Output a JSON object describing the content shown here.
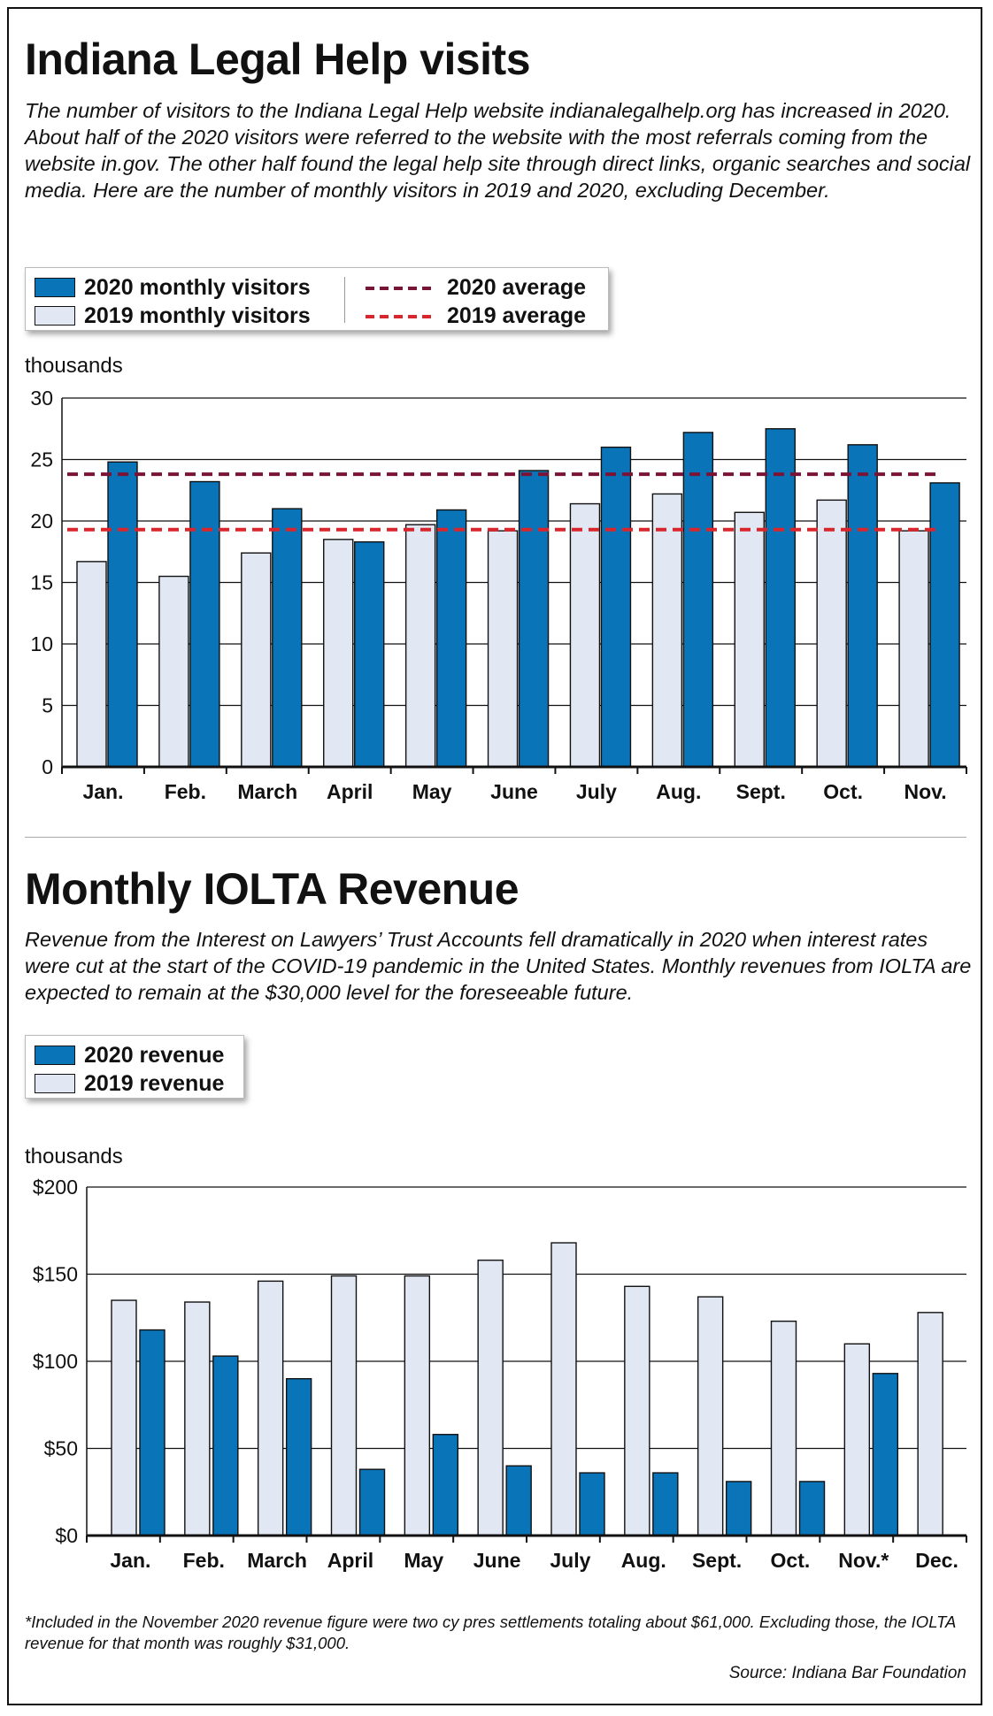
{
  "section1": {
    "title": "Indiana Legal Help visits",
    "description": "The number of visitors to the Indiana Legal Help website indianalegalhelp.org has increased in 2020. About half of the 2020 visitors were referred to the website with the most referrals coming from the website in.gov. The other half found the legal help site through direct links, organic searches and social media. Here are the number of monthly visitors in 2019 and 2020, excluding December.",
    "legend": {
      "series2020": "2020 monthly visitors",
      "series2019": "2019 monthly visitors",
      "avg2020": "2020 average",
      "avg2019": "2019 average"
    },
    "unit": "thousands"
  },
  "section2": {
    "title": "Monthly IOLTA Revenue",
    "description": "Revenue from the Interest on Lawyers’ Trust Accounts fell dramatically in 2020 when interest rates were cut at the start of the COVID-19 pandemic in the United States. Monthly revenues from IOLTA are expected to remain at the $30,000 level for the foreseeable future.",
    "legend": {
      "series2020": "2020 revenue",
      "series2019": "2019 revenue"
    },
    "unit": "thousands"
  },
  "footnote": "*Included in the November 2020 revenue figure were two cy pres settlements totaling about $61,000. Excluding those, the IOLTA revenue for that month was roughly $31,000.",
  "source": "Source: Indiana Bar Foundation",
  "colors": {
    "bar2020": "#0a74b8",
    "bar2019": "#e1e8f3",
    "avg2020": "#7a1436",
    "avg2019": "#d9262c"
  },
  "chart_data": [
    {
      "type": "bar",
      "title": "Indiana Legal Help visits",
      "ylabel": "thousands",
      "ylim": [
        0,
        30
      ],
      "yticks": [
        0,
        5,
        10,
        15,
        20,
        25,
        30
      ],
      "grid": true,
      "legend_position": "top-left",
      "categories": [
        "Jan.",
        "Feb.",
        "March",
        "April",
        "May",
        "June",
        "July",
        "Aug.",
        "Sept.",
        "Oct.",
        "Nov."
      ],
      "series": [
        {
          "name": "2019 monthly visitors",
          "values": [
            16.7,
            15.5,
            17.4,
            18.5,
            19.7,
            19.2,
            21.4,
            22.2,
            20.7,
            21.7,
            19.2
          ]
        },
        {
          "name": "2020 monthly visitors",
          "values": [
            24.8,
            23.2,
            21.0,
            18.3,
            20.9,
            24.1,
            26.0,
            27.2,
            27.5,
            26.2,
            23.1
          ]
        }
      ],
      "reference_lines": [
        {
          "name": "2020 average",
          "value": 23.8
        },
        {
          "name": "2019 average",
          "value": 19.3
        }
      ]
    },
    {
      "type": "bar",
      "title": "Monthly IOLTA Revenue",
      "ylabel": "thousands",
      "ylim": [
        0,
        200
      ],
      "yticks": [
        "$0",
        "$50",
        "$100",
        "$150",
        "$200"
      ],
      "grid": true,
      "legend_position": "top-left",
      "categories": [
        "Jan.",
        "Feb.",
        "March",
        "April",
        "May",
        "June",
        "July",
        "Aug.",
        "Sept.",
        "Oct.",
        "Nov.*",
        "Dec."
      ],
      "series": [
        {
          "name": "2019 revenue",
          "values": [
            135,
            134,
            146,
            149,
            149,
            158,
            168,
            143,
            137,
            123,
            110,
            128
          ]
        },
        {
          "name": "2020 revenue",
          "values": [
            118,
            103,
            90,
            38,
            58,
            40,
            36,
            36,
            31,
            31,
            93,
            null
          ]
        }
      ]
    }
  ]
}
